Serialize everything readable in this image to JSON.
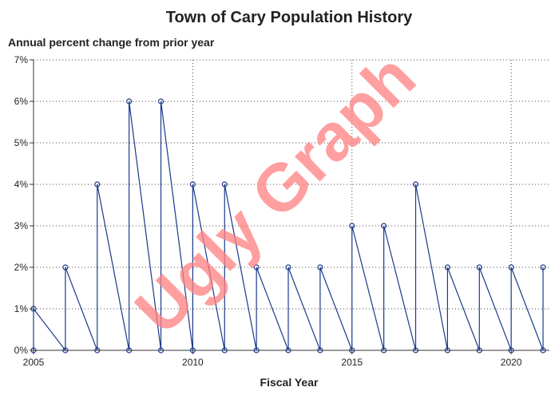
{
  "chart_data": {
    "type": "line",
    "title": "Town of Cary Population History",
    "subtitle": "Annual percent change from prior year",
    "xlabel": "Fiscal Year",
    "ylabel": "",
    "xlim": [
      2005,
      2021.2
    ],
    "ylim": [
      0,
      7
    ],
    "x_ticks": [
      2005,
      2010,
      2015,
      2020
    ],
    "y_ticks": [
      0,
      1,
      2,
      3,
      4,
      5,
      6,
      7
    ],
    "y_tick_labels": [
      "0%",
      "1%",
      "2%",
      "3%",
      "4%",
      "5%",
      "6%",
      "7%"
    ],
    "grid": true,
    "series": [
      {
        "x": [
          2005,
          2006,
          2007,
          2008,
          2009,
          2010,
          2011,
          2012,
          2013,
          2014,
          2015,
          2016,
          2017,
          2018,
          2019,
          2020,
          2021
        ],
        "values": [
          1,
          2,
          4,
          6,
          6,
          4,
          4,
          2,
          2,
          2,
          3,
          3,
          4,
          2,
          2,
          2,
          2
        ]
      }
    ],
    "watermark": "Ugly Graph",
    "colors": {
      "line": "#1a3a8a",
      "marker": "#1a3a8a",
      "grid": "#444444",
      "watermark": "#ff8080"
    }
  }
}
